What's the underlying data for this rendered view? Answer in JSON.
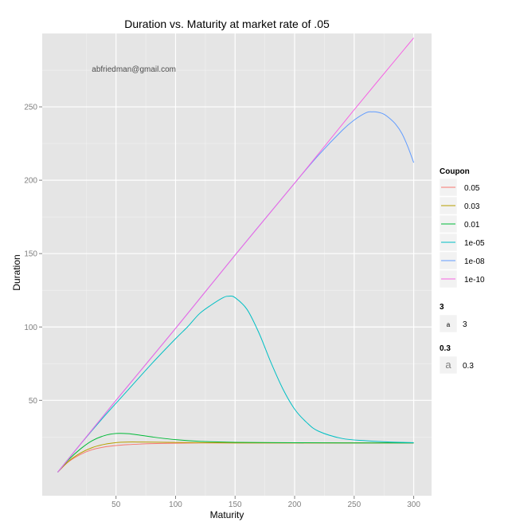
{
  "chart_data": {
    "type": "line",
    "title": "Duration vs. Maturity at market rate of .05",
    "xlabel": "Maturity",
    "ylabel": "Duration",
    "xlim": [
      -12,
      315
    ],
    "ylim": [
      -15,
      300
    ],
    "xticks": [
      50,
      100,
      150,
      200,
      250,
      300
    ],
    "yticks": [
      50,
      100,
      150,
      200,
      250
    ],
    "annotation": "abfriedman@gmail.com",
    "legend": {
      "title": "Coupon",
      "position": "right",
      "entries": [
        {
          "name": "0.05",
          "color": "#F8766D"
        },
        {
          "name": "0.03",
          "color": "#B79F00"
        },
        {
          "name": "0.01",
          "color": "#00BA38"
        },
        {
          "name": "1e-05",
          "color": "#00BFC4"
        },
        {
          "name": "1e-08",
          "color": "#619CFF"
        },
        {
          "name": "1e-10",
          "color": "#F564E3"
        }
      ],
      "size_legends": [
        {
          "title": "3",
          "key": "a",
          "label": "3"
        },
        {
          "title": "0.3",
          "key": "a",
          "label": "0.3"
        }
      ]
    },
    "grid": true,
    "series": [
      {
        "name": "0.05",
        "color": "#F8766D",
        "x": [
          1,
          10,
          20,
          30,
          40,
          50,
          60,
          70,
          80,
          100,
          120,
          150,
          200,
          250,
          300
        ],
        "y": [
          1,
          8.1,
          13.1,
          16.4,
          18.2,
          19.2,
          19.8,
          20.2,
          20.5,
          20.8,
          20.95,
          21,
          21,
          21,
          21
        ]
      },
      {
        "name": "0.03",
        "color": "#B79F00",
        "x": [
          1,
          10,
          20,
          30,
          40,
          50,
          60,
          70,
          80,
          100,
          120,
          150,
          200,
          250,
          300
        ],
        "y": [
          1,
          8.4,
          14,
          17.8,
          20,
          21.2,
          21.6,
          21.6,
          21.5,
          21.3,
          21.1,
          21,
          21,
          21,
          21
        ]
      },
      {
        "name": "0.01",
        "color": "#00BA38",
        "x": [
          1,
          10,
          20,
          30,
          40,
          50,
          60,
          70,
          80,
          100,
          120,
          150,
          200,
          250,
          300
        ],
        "y": [
          1,
          9.4,
          16.8,
          22.5,
          25.9,
          27.4,
          27.3,
          26.3,
          25.1,
          23.2,
          22.1,
          21.4,
          21.1,
          21,
          21
        ]
      },
      {
        "name": "1e-05",
        "color": "#00BFC4",
        "x": [
          1,
          20,
          40,
          60,
          80,
          100,
          110,
          120,
          130,
          140,
          145,
          150,
          160,
          170,
          180,
          190,
          200,
          210,
          220,
          240,
          260,
          280,
          300
        ],
        "y": [
          1,
          20,
          39,
          57,
          75,
          92,
          100,
          109,
          115,
          120,
          121,
          120,
          112,
          96,
          76,
          58,
          44,
          35,
          29,
          24,
          22.5,
          21.6,
          21.2
        ]
      },
      {
        "name": "1e-08",
        "color": "#619CFF",
        "x": [
          1,
          50,
          100,
          150,
          200,
          220,
          240,
          250,
          260,
          265,
          270,
          275,
          280,
          285,
          290,
          295,
          300
        ],
        "y": [
          1,
          50,
          99,
          149,
          198,
          217,
          234,
          241,
          246,
          246.6,
          246.3,
          245,
          242,
          238,
          232,
          223,
          212
        ]
      },
      {
        "name": "1e-10",
        "color": "#F564E3",
        "x": [
          1,
          50,
          100,
          150,
          200,
          250,
          300
        ],
        "y": [
          1,
          50,
          99,
          149,
          198,
          248,
          297
        ]
      }
    ]
  }
}
